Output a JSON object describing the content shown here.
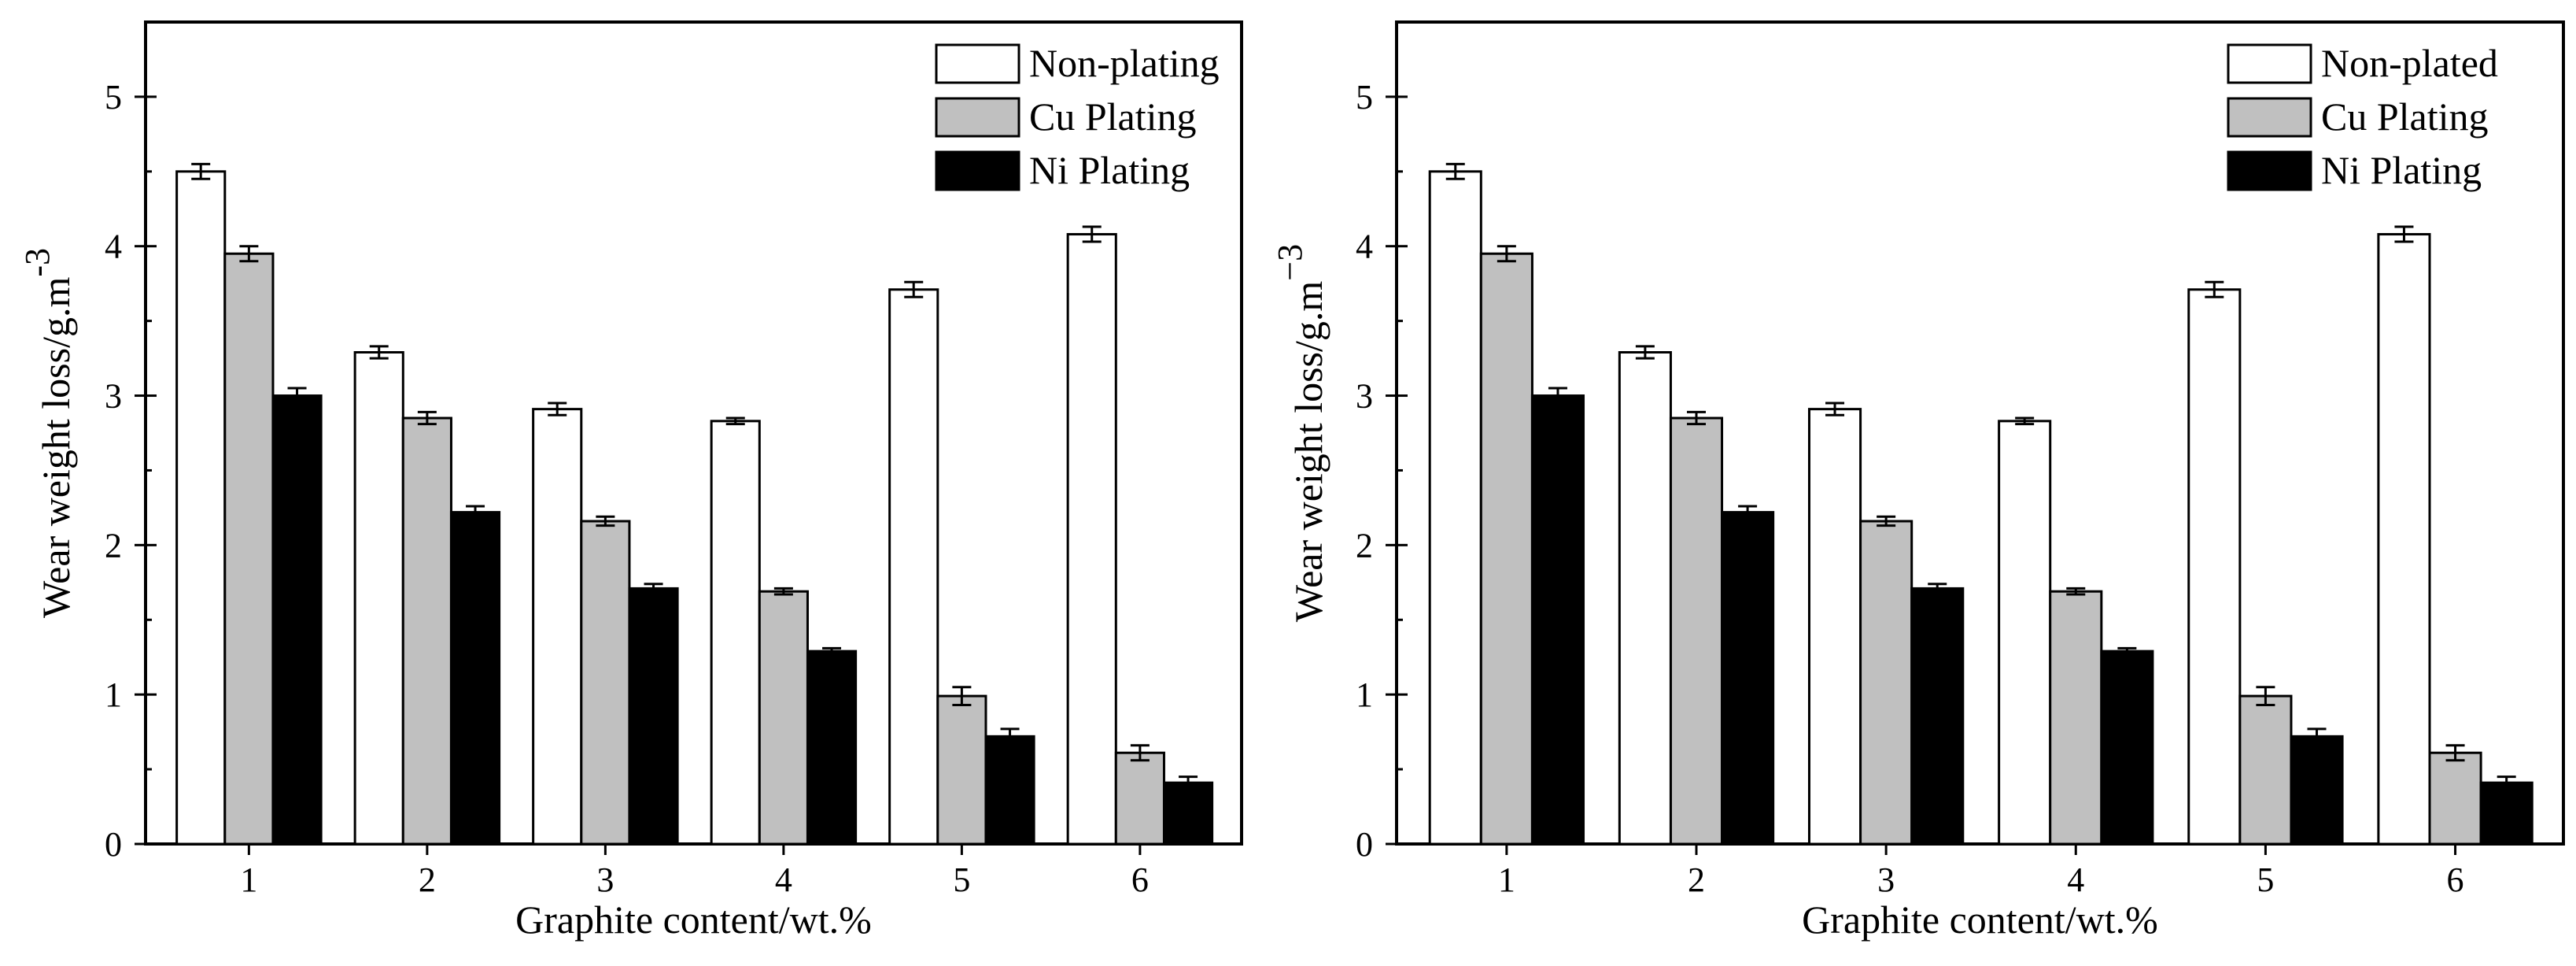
{
  "chart_data": [
    {
      "type": "bar",
      "title": "",
      "xlabel": "Graphite content/wt.%",
      "ylabel": "Wear weight loss/g.m",
      "ylabel_superscript": "-3",
      "ylim": [
        0,
        5.5
      ],
      "yticks": [
        0,
        1,
        2,
        3,
        4,
        5
      ],
      "categories": [
        "1",
        "2",
        "3",
        "4",
        "5",
        "6"
      ],
      "legend_position": "top-right",
      "series": [
        {
          "name": "Non-plating",
          "color": "#ffffff",
          "values": [
            4.5,
            3.29,
            2.91,
            2.83,
            3.71,
            4.08
          ],
          "errors": [
            0.05,
            0.04,
            0.04,
            0.02,
            0.05,
            0.05
          ]
        },
        {
          "name": "Cu Plating",
          "color": "#c0c0c0",
          "values": [
            3.95,
            2.85,
            2.16,
            1.69,
            0.99,
            0.61
          ],
          "errors": [
            0.05,
            0.04,
            0.03,
            0.02,
            0.06,
            0.05
          ]
        },
        {
          "name": "Ni Plating",
          "color": "#000000",
          "values": [
            3.0,
            2.22,
            1.71,
            1.29,
            0.72,
            0.41
          ],
          "errors": [
            0.05,
            0.04,
            0.03,
            0.02,
            0.05,
            0.04
          ]
        }
      ]
    },
    {
      "type": "bar",
      "title": "",
      "xlabel": "Graphite content/wt.%",
      "ylabel": "Wear weight loss/g.m",
      "ylabel_superscript": "−3",
      "ylim": [
        0,
        5.5
      ],
      "yticks": [
        0,
        1,
        2,
        3,
        4,
        5
      ],
      "categories": [
        "1",
        "2",
        "3",
        "4",
        "5",
        "6"
      ],
      "legend_position": "top-right",
      "series": [
        {
          "name": "Non-plated",
          "color": "#ffffff",
          "values": [
            4.5,
            3.29,
            2.91,
            2.83,
            3.71,
            4.08
          ],
          "errors": [
            0.05,
            0.04,
            0.04,
            0.02,
            0.05,
            0.05
          ]
        },
        {
          "name": "Cu Plating",
          "color": "#c0c0c0",
          "values": [
            3.95,
            2.85,
            2.16,
            1.69,
            0.99,
            0.61
          ],
          "errors": [
            0.05,
            0.04,
            0.03,
            0.02,
            0.06,
            0.05
          ]
        },
        {
          "name": "Ni Plating",
          "color": "#000000",
          "values": [
            3.0,
            2.22,
            1.71,
            1.29,
            0.72,
            0.41
          ],
          "errors": [
            0.05,
            0.04,
            0.03,
            0.02,
            0.05,
            0.04
          ]
        }
      ]
    }
  ]
}
